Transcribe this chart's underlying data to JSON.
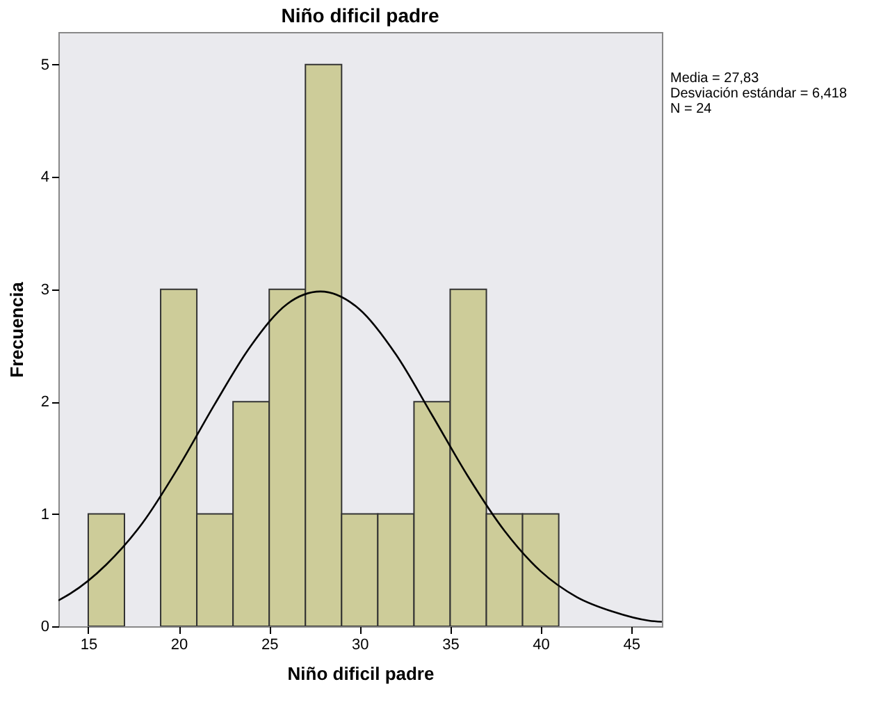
{
  "chart_data": {
    "type": "histogram",
    "title": "Niño dificil padre",
    "xlabel": "Niño dificil padre",
    "ylabel": "Frecuencia",
    "bins": [
      15,
      17,
      19,
      21,
      23,
      25,
      27,
      29,
      31,
      33,
      35,
      37,
      39,
      41
    ],
    "values": [
      1,
      0,
      3,
      1,
      2,
      3,
      5,
      1,
      1,
      2,
      3,
      1,
      1
    ],
    "color": "#cdcc99",
    "xlim": [
      13.35,
      46.7
    ],
    "xticks": [
      15,
      20,
      25,
      30,
      35,
      40,
      45
    ],
    "ylim": [
      0,
      5.29
    ],
    "yticks": [
      0,
      1,
      2,
      3,
      4,
      5
    ],
    "grid": false,
    "annotations": [
      "Media = 27,83",
      "Desviación estándar = 6,418",
      "N = 24"
    ],
    "series": [
      {
        "type": "line",
        "color": "#000000",
        "x": [
          13.35,
          14,
          16,
          18,
          20,
          22,
          24,
          26,
          27.83,
          30,
          32,
          34,
          36,
          38,
          40,
          42,
          44,
          46,
          46.7
        ],
        "values": [
          0.23,
          0.29,
          0.55,
          0.92,
          1.42,
          1.98,
          2.5,
          2.87,
          2.98,
          2.82,
          2.42,
          1.88,
          1.33,
          0.85,
          0.49,
          0.26,
          0.13,
          0.05,
          0.04
        ]
      }
    ]
  }
}
